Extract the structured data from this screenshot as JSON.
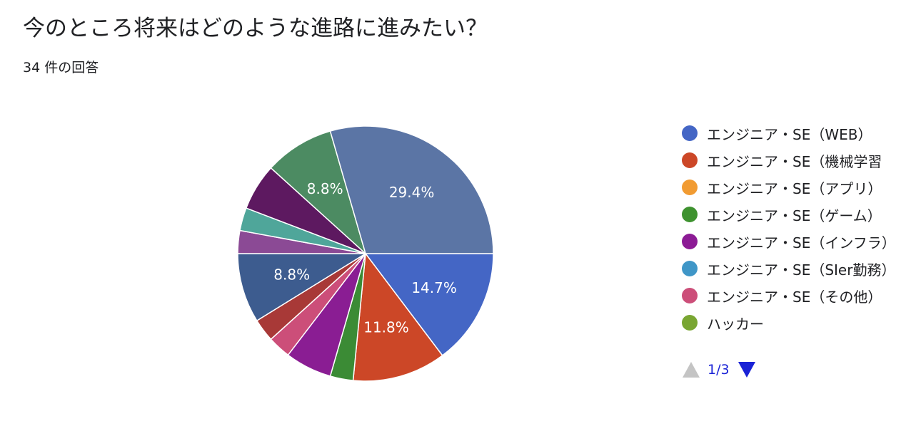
{
  "header": {
    "title": "今のところ将来はどのような進路に進みたい？",
    "response_count": "34 件の回答"
  },
  "chart_data": {
    "type": "pie",
    "slices": [
      {
        "name": "エンジニア・SE（WEB）",
        "value": 14.7,
        "label": "14.7%",
        "color": "#4466c5"
      },
      {
        "name": "エンジニア・SE（機械学習",
        "value": 11.8,
        "label": "11.8%",
        "color": "#cc4727"
      },
      {
        "name": "",
        "value": 2.9,
        "label": "",
        "color": "#3b8b35"
      },
      {
        "name": "",
        "value": 5.9,
        "label": "",
        "color": "#8a1d93"
      },
      {
        "name": "",
        "value": 2.9,
        "label": "",
        "color": "#cc4e79"
      },
      {
        "name": "",
        "value": 2.9,
        "label": "",
        "color": "#a83937"
      },
      {
        "name": "",
        "value": 8.8,
        "label": "8.8%",
        "color": "#3d5c8f"
      },
      {
        "name": "",
        "value": 2.9,
        "label": "",
        "color": "#8b4a95"
      },
      {
        "name": "",
        "value": 2.9,
        "label": "",
        "color": "#4fa69a"
      },
      {
        "name": "",
        "value": 5.9,
        "label": "",
        "color": "#5d1960"
      },
      {
        "name": "",
        "value": 8.8,
        "label": "8.8%",
        "color": "#4c8b62"
      },
      {
        "name": "",
        "value": 29.4,
        "label": "29.4%",
        "color": "#5b75a5"
      }
    ],
    "legend": [
      {
        "label": "エンジニア・SE（WEB）",
        "color": "#4466c5"
      },
      {
        "label": "エンジニア・SE（機械学習",
        "color": "#cc4727"
      },
      {
        "label": "エンジニア・SE（アプリ）",
        "color": "#f19b32"
      },
      {
        "label": "エンジニア・SE（ゲーム）",
        "color": "#3e922f"
      },
      {
        "label": "エンジニア・SE（インフラ）",
        "color": "#8c1b95"
      },
      {
        "label": "エンジニア・SE（SIer勤務）",
        "color": "#3f96c7"
      },
      {
        "label": "エンジニア・SE（その他）",
        "color": "#cc4e79"
      },
      {
        "label": "ハッカー",
        "color": "#79a632"
      }
    ],
    "legend_position": "right"
  },
  "pager": {
    "page_text": "1/3"
  }
}
